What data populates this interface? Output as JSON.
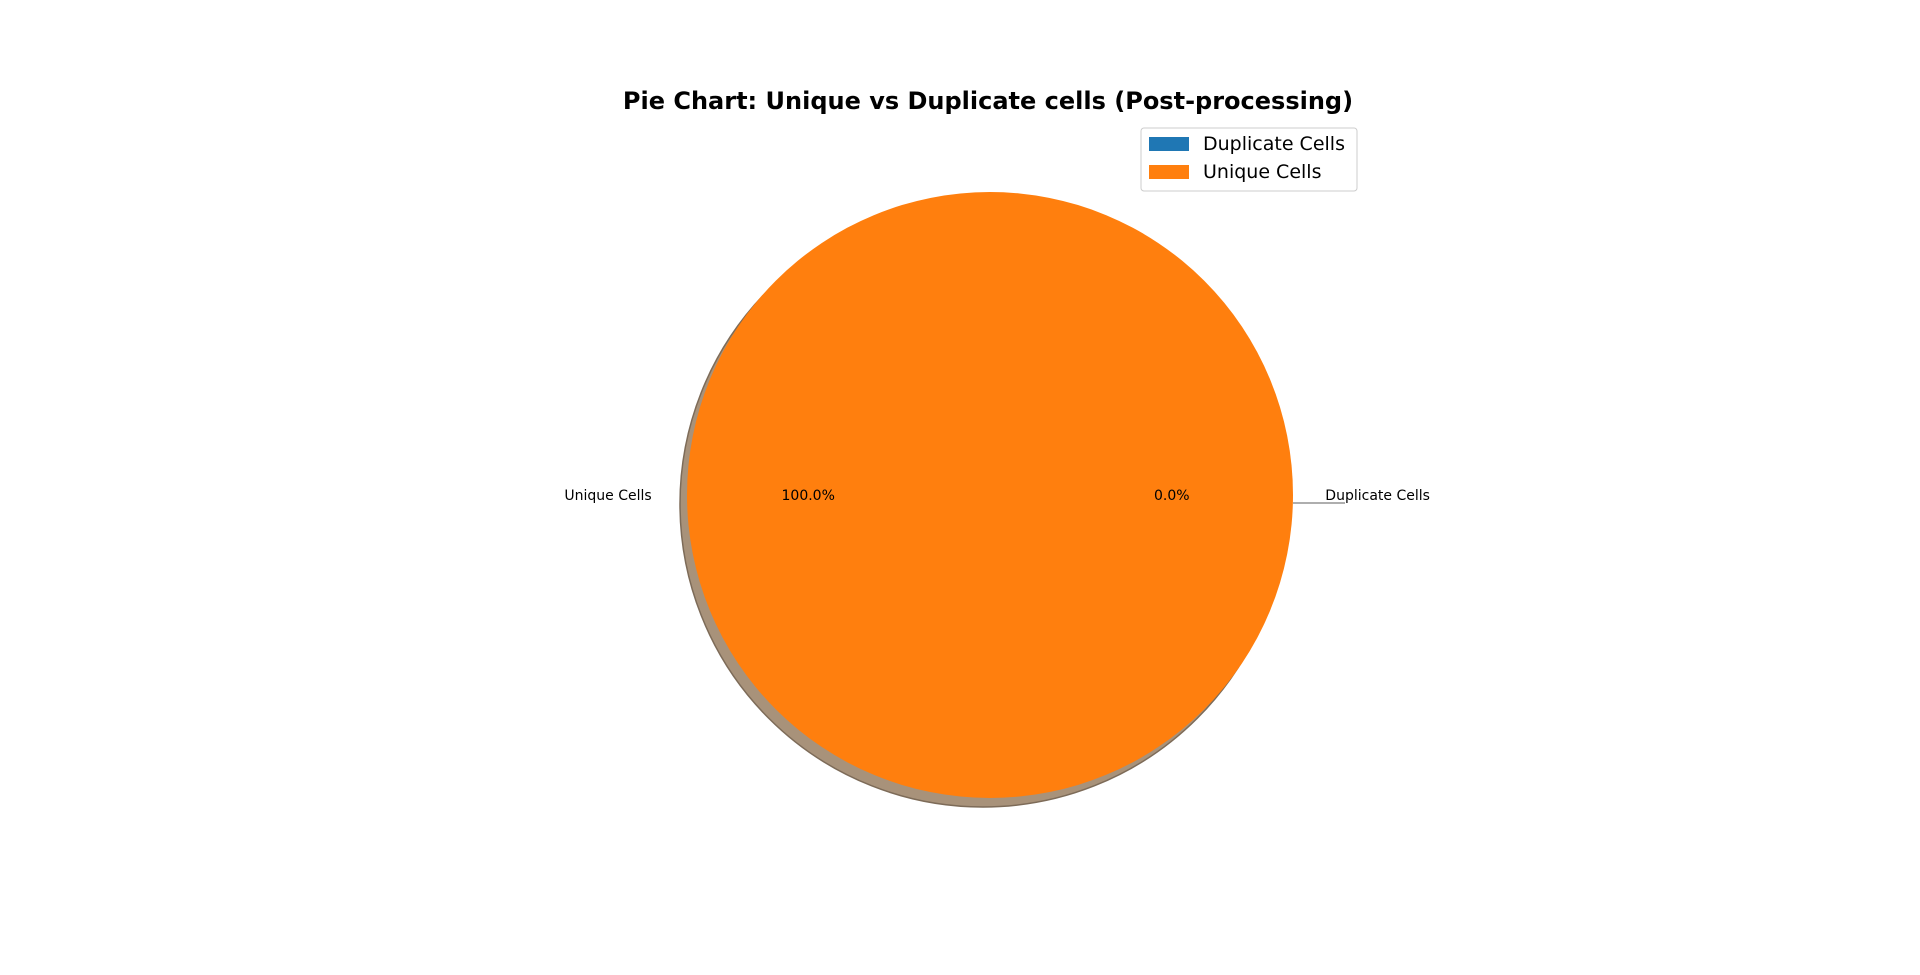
{
  "chart_data": {
    "type": "pie",
    "title": "Pie Chart: Unique vs Duplicate cells (Post-processing)",
    "categories": [
      "Duplicate Cells",
      "Unique Cells"
    ],
    "values": [
      0.0,
      100.0
    ],
    "percent_labels": [
      "0.0%",
      "100.0%"
    ],
    "colors": [
      "#1f77b4",
      "#ff7f0e"
    ],
    "shadow": true,
    "legend": {
      "position": "top-right",
      "entries": [
        "Duplicate Cells",
        "Unique Cells"
      ]
    }
  }
}
